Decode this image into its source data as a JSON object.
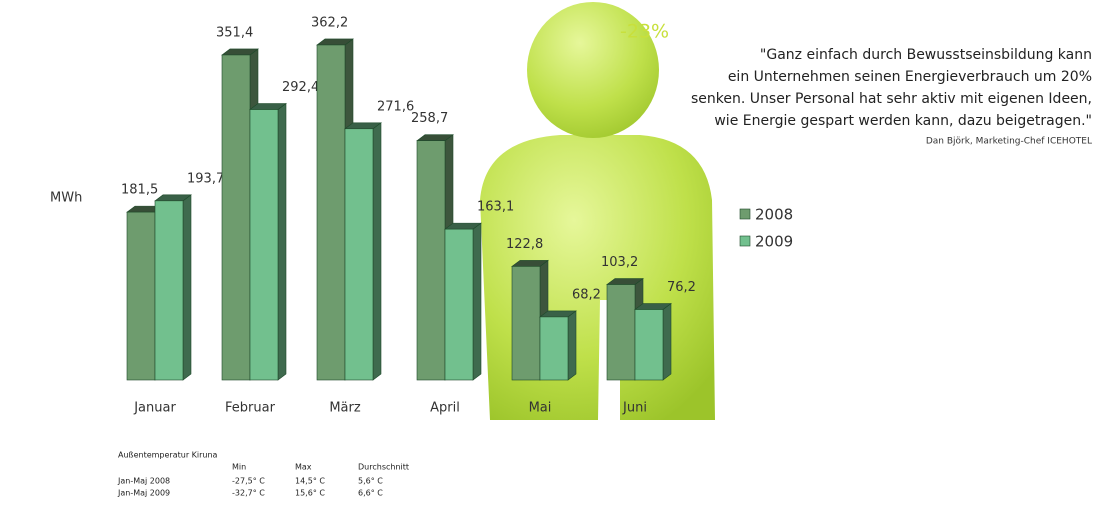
{
  "chart_data": {
    "type": "bar3d",
    "y_label": "MWh",
    "categories": [
      "Januar",
      "Februar",
      "März",
      "April",
      "Mai",
      "Juni"
    ],
    "series": [
      {
        "name": "2008",
        "color": "#6e9c6e",
        "values": [
          181.5,
          351.4,
          362.2,
          258.7,
          122.8,
          103.2
        ],
        "value_labels": [
          "181,5",
          "351,4",
          "362,2",
          "258,7",
          "122,8",
          "103,2"
        ]
      },
      {
        "name": "2009",
        "color": "#72c08e",
        "values": [
          193.7,
          292.4,
          271.6,
          163.1,
          68.2,
          76.2
        ],
        "value_labels": [
          "193,7",
          "292,4",
          "271,6",
          "163,1",
          "68,2",
          "76,2"
        ]
      }
    ],
    "annotation": "-23%",
    "quote": [
      "\"Ganz einfach durch Bewusstseinsbildung kann",
      "ein Unternehmen seinen Energieverbrauch um 20%",
      "senken. Unser Personal hat sehr aktiv mit eigenen Ideen,",
      "wie Energie gespart werden kann, dazu beigetragen.\""
    ],
    "attribution": "Dan Björk, Marketing-Chef ICEHOTEL"
  },
  "table": {
    "title": "Außentemperatur Kiruna",
    "header": [
      "Min",
      "Max",
      "Durchschnitt"
    ],
    "rows": [
      [
        "Jan-Maj 2008",
        "-27,5° C",
        "14,5° C",
        "5,6° C"
      ],
      [
        "Jan-Maj 2009",
        "-32,7° C",
        "15,6° C",
        "6,6° C"
      ]
    ]
  }
}
